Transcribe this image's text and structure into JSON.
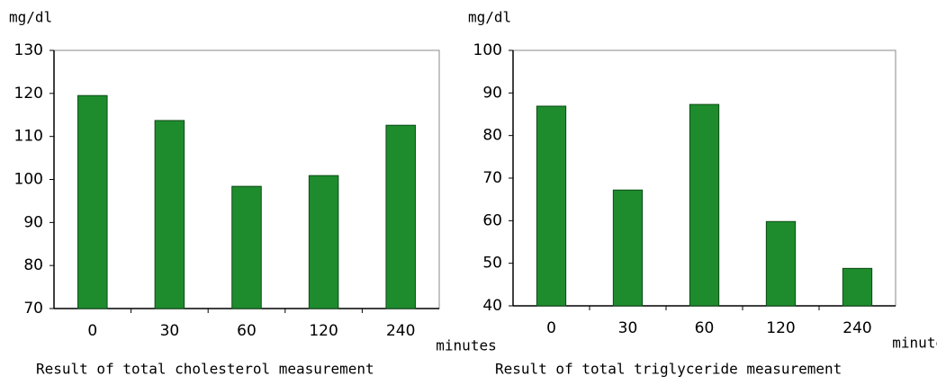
{
  "chart_data": [
    {
      "type": "bar",
      "title": "Result of total cholesterol measurement",
      "y_label": "mg/dl",
      "x_label": "minutes",
      "categories": [
        "0",
        "30",
        "60",
        "120",
        "240"
      ],
      "values": [
        119.5,
        113.7,
        98.4,
        100.9,
        112.6
      ],
      "color": "#1e8c2d",
      "ylim": [
        70,
        130
      ],
      "yticks": [
        70,
        80,
        90,
        100,
        110,
        120,
        130
      ],
      "grid": false
    },
    {
      "type": "bar",
      "title": "Result of total triglyceride measurement",
      "y_label": "mg/dl",
      "x_label": "minutes",
      "categories": [
        "0",
        "30",
        "60",
        "120",
        "240"
      ],
      "values": [
        86.9,
        67.2,
        87.3,
        59.8,
        48.8
      ],
      "color": "#1e8c2d",
      "ylim": [
        40,
        100
      ],
      "yticks": [
        40,
        50,
        60,
        70,
        80,
        90,
        100
      ],
      "grid": false
    }
  ]
}
